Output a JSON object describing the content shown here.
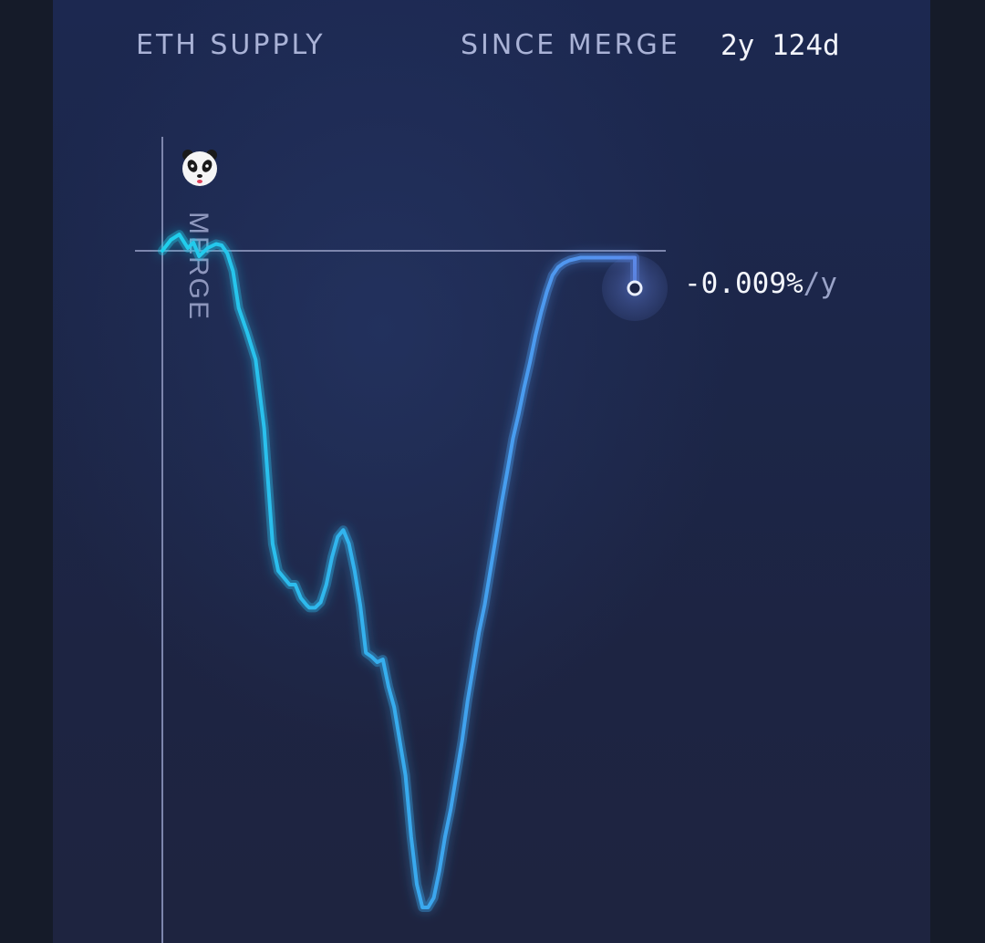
{
  "header": {
    "title": "ETH SUPPLY",
    "since_label": "SINCE MERGE",
    "since_value": "2y 124d"
  },
  "chart_data": {
    "type": "line",
    "title": "ETH SUPPLY",
    "xlabel": "",
    "ylabel": "",
    "grid": false,
    "markers": [
      {
        "label": "MERGE",
        "x": 0,
        "icon": "panda-icon"
      }
    ],
    "baseline_y": 0,
    "end_annotation": {
      "value": "-0.009%",
      "unit": "/y"
    },
    "xlim": [
      0,
      100
    ],
    "ylim": [
      -5.2,
      0.3
    ],
    "series": [
      {
        "color_start": "#1fd0ec",
        "color_end": "#5b8ef0",
        "x": [
          0,
          1.5,
          3,
          4.5,
          5.5,
          6.5,
          8,
          9.5,
          10.5,
          11.5,
          12.5,
          13.5,
          15,
          16.5,
          18,
          19.5,
          20.5,
          21.5,
          22.5,
          23.5,
          24.5,
          25.5,
          26,
          27,
          28,
          29,
          30,
          31,
          32,
          33,
          34,
          35,
          36,
          37,
          38,
          39,
          40,
          41,
          42,
          43,
          44,
          45,
          46,
          47,
          48,
          49,
          50,
          51,
          52,
          53,
          54,
          55,
          56,
          57,
          58,
          59,
          60,
          61,
          62,
          63,
          64,
          65,
          66,
          67,
          68,
          69,
          70,
          71,
          72,
          73,
          74,
          75,
          76,
          77,
          78,
          79,
          80,
          81,
          82,
          83,
          84,
          85,
          86,
          87,
          88,
          89,
          90,
          91,
          92,
          93
        ],
        "y": [
          0,
          0.08,
          0.12,
          0.02,
          0.06,
          -0.04,
          0.02,
          0.05,
          0.04,
          -0.02,
          -0.15,
          -0.42,
          -0.6,
          -0.8,
          -1.3,
          -2.15,
          -2.35,
          -2.4,
          -2.45,
          -2.45,
          -2.55,
          -2.6,
          -2.62,
          -2.62,
          -2.58,
          -2.45,
          -2.25,
          -2.1,
          -2.05,
          -2.15,
          -2.35,
          -2.6,
          -2.95,
          -2.98,
          -3.02,
          -3.0,
          -3.2,
          -3.35,
          -3.6,
          -3.85,
          -4.3,
          -4.65,
          -4.82,
          -4.82,
          -4.75,
          -4.55,
          -4.3,
          -4.1,
          -3.85,
          -3.6,
          -3.3,
          -3.05,
          -2.8,
          -2.6,
          -2.35,
          -2.1,
          -1.85,
          -1.62,
          -1.38,
          -1.2,
          -1.0,
          -0.82,
          -0.62,
          -0.45,
          -0.3,
          -0.18,
          -0.12,
          -0.09,
          -0.07,
          -0.06,
          -0.05,
          -0.05,
          -0.05,
          -0.05,
          -0.05,
          -0.05,
          -0.05,
          -0.05,
          -0.05,
          -0.05,
          -0.05,
          -0.05,
          -0.05,
          -0.05,
          -0.05,
          -0.05,
          -0.05,
          -0.05,
          -0.05,
          -0.05
        ]
      }
    ]
  }
}
